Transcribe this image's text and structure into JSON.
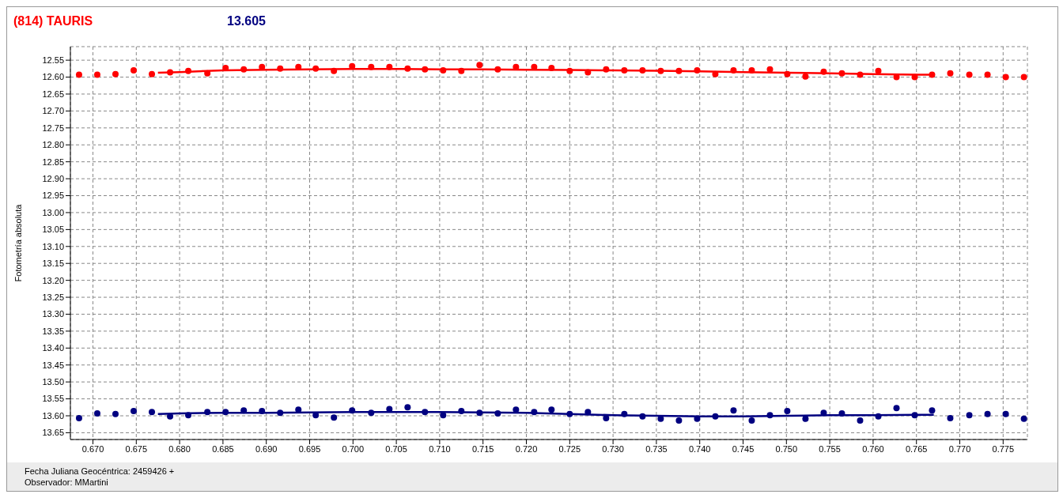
{
  "chart_data": {
    "type": "scatter",
    "title": "(814) TAURIS",
    "subtitle": "13.605",
    "ylabel": "Fotometría absoluta",
    "xlabel": "Fecha Juliana Geocéntrica: 2459426 +",
    "annotations": [
      "Observador: MMartini"
    ],
    "x": [
      0.6684,
      0.6705,
      0.6726,
      0.6747,
      0.6768,
      0.6789,
      0.681,
      0.6832,
      0.6853,
      0.6874,
      0.6895,
      0.6916,
      0.6937,
      0.6957,
      0.6978,
      0.6999,
      0.7021,
      0.7042,
      0.7063,
      0.7083,
      0.7104,
      0.7125,
      0.7146,
      0.7167,
      0.7188,
      0.7209,
      0.7229,
      0.725,
      0.7271,
      0.7292,
      0.7313,
      0.7334,
      0.7355,
      0.7376,
      0.7397,
      0.7418,
      0.7439,
      0.746,
      0.7481,
      0.7501,
      0.7522,
      0.7543,
      0.7564,
      0.7585,
      0.7606,
      0.7627,
      0.7648,
      0.7668,
      0.7689,
      0.7711,
      0.7732,
      0.7753,
      0.7774
    ],
    "series": [
      {
        "color": "#ff0000",
        "values": [
          12.593,
          12.593,
          12.591,
          12.58,
          12.591,
          12.586,
          12.582,
          12.589,
          12.573,
          12.577,
          12.57,
          12.575,
          12.57,
          12.575,
          12.582,
          12.568,
          12.57,
          12.57,
          12.575,
          12.577,
          12.58,
          12.582,
          12.564,
          12.577,
          12.57,
          12.57,
          12.573,
          12.582,
          12.586,
          12.577,
          12.58,
          12.58,
          12.582,
          12.582,
          12.58,
          12.591,
          12.58,
          12.58,
          12.577,
          12.591,
          12.598,
          12.584,
          12.589,
          12.593,
          12.582,
          12.6,
          12.6,
          12.593,
          12.589,
          12.593,
          12.593,
          12.6,
          12.6
        ]
      },
      {
        "type": "line",
        "marker": "none",
        "color": "#ff0000",
        "x": [
          0.6775,
          0.68,
          0.685,
          0.69,
          0.695,
          0.7,
          0.705,
          0.71,
          0.715,
          0.72,
          0.725,
          0.73,
          0.735,
          0.74,
          0.745,
          0.75,
          0.755,
          0.76,
          0.765,
          0.767
        ],
        "values": [
          12.587,
          12.585,
          12.58,
          12.578,
          12.577,
          12.576,
          12.576,
          12.577,
          12.577,
          12.578,
          12.579,
          12.58,
          12.581,
          12.583,
          12.585,
          12.587,
          12.589,
          12.591,
          12.593,
          12.593
        ]
      },
      {
        "color": "#000080",
        "values": [
          13.607,
          13.593,
          13.595,
          13.586,
          13.589,
          13.602,
          13.598,
          13.589,
          13.589,
          13.584,
          13.586,
          13.591,
          13.582,
          13.598,
          13.605,
          13.584,
          13.591,
          13.58,
          13.575,
          13.589,
          13.598,
          13.586,
          13.591,
          13.593,
          13.582,
          13.589,
          13.582,
          13.595,
          13.589,
          13.607,
          13.595,
          13.602,
          13.609,
          13.614,
          13.609,
          13.602,
          13.584,
          13.614,
          13.598,
          13.586,
          13.609,
          13.591,
          13.593,
          13.614,
          13.602,
          13.577,
          13.598,
          13.584,
          13.607,
          13.598,
          13.595,
          13.595,
          13.609
        ]
      },
      {
        "type": "line",
        "marker": "none",
        "color": "#000080",
        "x": [
          0.6775,
          0.68,
          0.685,
          0.69,
          0.7,
          0.71,
          0.72,
          0.725,
          0.73,
          0.735,
          0.74,
          0.745,
          0.75,
          0.755,
          0.76,
          0.765,
          0.767
        ],
        "values": [
          13.595,
          13.593,
          13.591,
          13.591,
          13.589,
          13.589,
          13.591,
          13.595,
          13.598,
          13.6,
          13.602,
          13.602,
          13.6,
          13.598,
          13.598,
          13.597,
          13.597
        ]
      }
    ],
    "xlim": [
      0.6674,
      0.7778
    ],
    "ylim": [
      13.67,
      12.51
    ],
    "xticks": [
      {
        "value": 0.67,
        "label": "0.670"
      },
      {
        "value": 0.675,
        "label": "0.675"
      },
      {
        "value": 0.68,
        "label": "0.680"
      },
      {
        "value": 0.685,
        "label": "0.685"
      },
      {
        "value": 0.69,
        "label": "0.690"
      },
      {
        "value": 0.695,
        "label": "0.695"
      },
      {
        "value": 0.7,
        "label": "0.700"
      },
      {
        "value": 0.705,
        "label": "0.705"
      },
      {
        "value": 0.71,
        "label": "0.710"
      },
      {
        "value": 0.715,
        "label": "0.715"
      },
      {
        "value": 0.72,
        "label": "0.720"
      },
      {
        "value": 0.725,
        "label": "0.725"
      },
      {
        "value": 0.73,
        "label": "0.730"
      },
      {
        "value": 0.735,
        "label": "0.735"
      },
      {
        "value": 0.74,
        "label": "0.740"
      },
      {
        "value": 0.745,
        "label": "0.745"
      },
      {
        "value": 0.75,
        "label": "0.750"
      },
      {
        "value": 0.755,
        "label": "0.755"
      },
      {
        "value": 0.76,
        "label": "0.760"
      },
      {
        "value": 0.765,
        "label": "0.765"
      },
      {
        "value": 0.77,
        "label": "0.770"
      },
      {
        "value": 0.775,
        "label": "0.775"
      }
    ],
    "yticks": [
      12.55,
      {
        "value": 12.6,
        "label": "12.60"
      },
      12.65,
      {
        "value": 12.7,
        "label": "12.70"
      },
      12.75,
      {
        "value": 12.8,
        "label": "12.80"
      },
      12.85,
      {
        "value": 12.9,
        "label": "12.90"
      },
      12.95,
      {
        "value": 13.0,
        "label": "13.00"
      },
      13.05,
      {
        "value": 13.1,
        "label": "13.10"
      },
      13.15,
      {
        "value": 13.2,
        "label": "13.20"
      },
      13.25,
      {
        "value": 13.3,
        "label": "13.30"
      },
      13.35,
      {
        "value": 13.4,
        "label": "13.40"
      },
      13.45,
      {
        "value": 13.5,
        "label": "13.50"
      },
      13.55,
      {
        "value": 13.6,
        "label": "13.60"
      },
      13.65
    ],
    "grid": true,
    "marker": "circle"
  }
}
